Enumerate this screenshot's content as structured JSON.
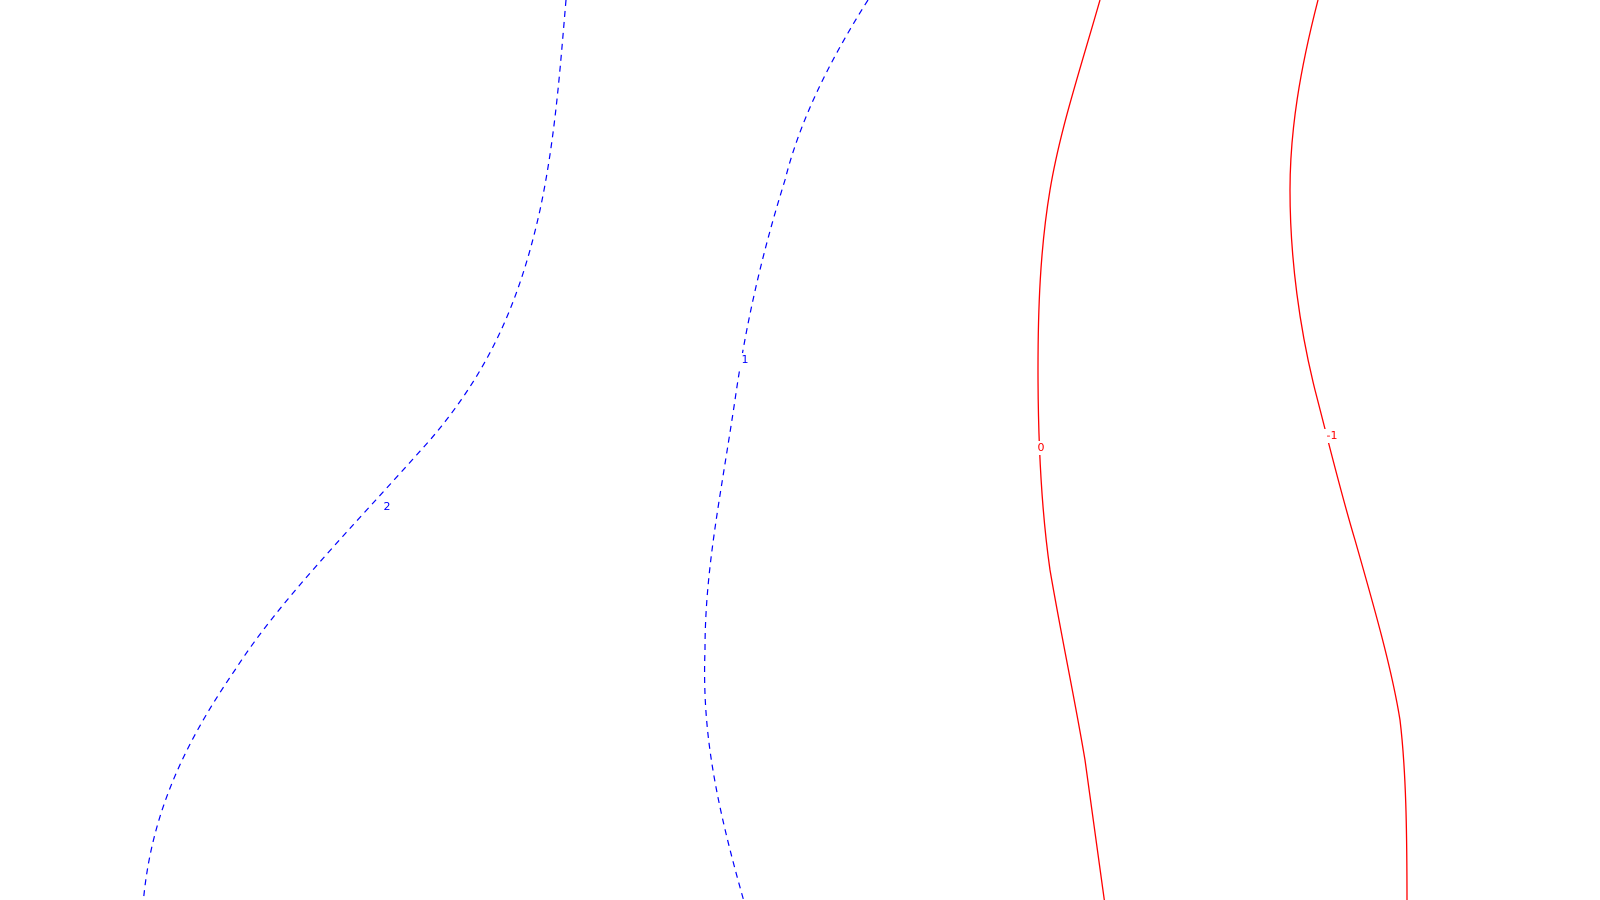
{
  "colors": {
    "background": "#ffffff",
    "positive": "#0000ff",
    "nonpositive": "#ff0000"
  },
  "contours": [
    {
      "id": "contour-2",
      "label": "2",
      "style": "dashed",
      "color": "#0000ff"
    },
    {
      "id": "contour-1",
      "label": "1",
      "style": "dashed",
      "color": "#0000ff"
    },
    {
      "id": "contour-0",
      "label": "0",
      "style": "solid",
      "color": "#ff0000"
    },
    {
      "id": "contour-minus-1",
      "label": "-1",
      "style": "solid",
      "color": "#ff0000"
    }
  ]
}
